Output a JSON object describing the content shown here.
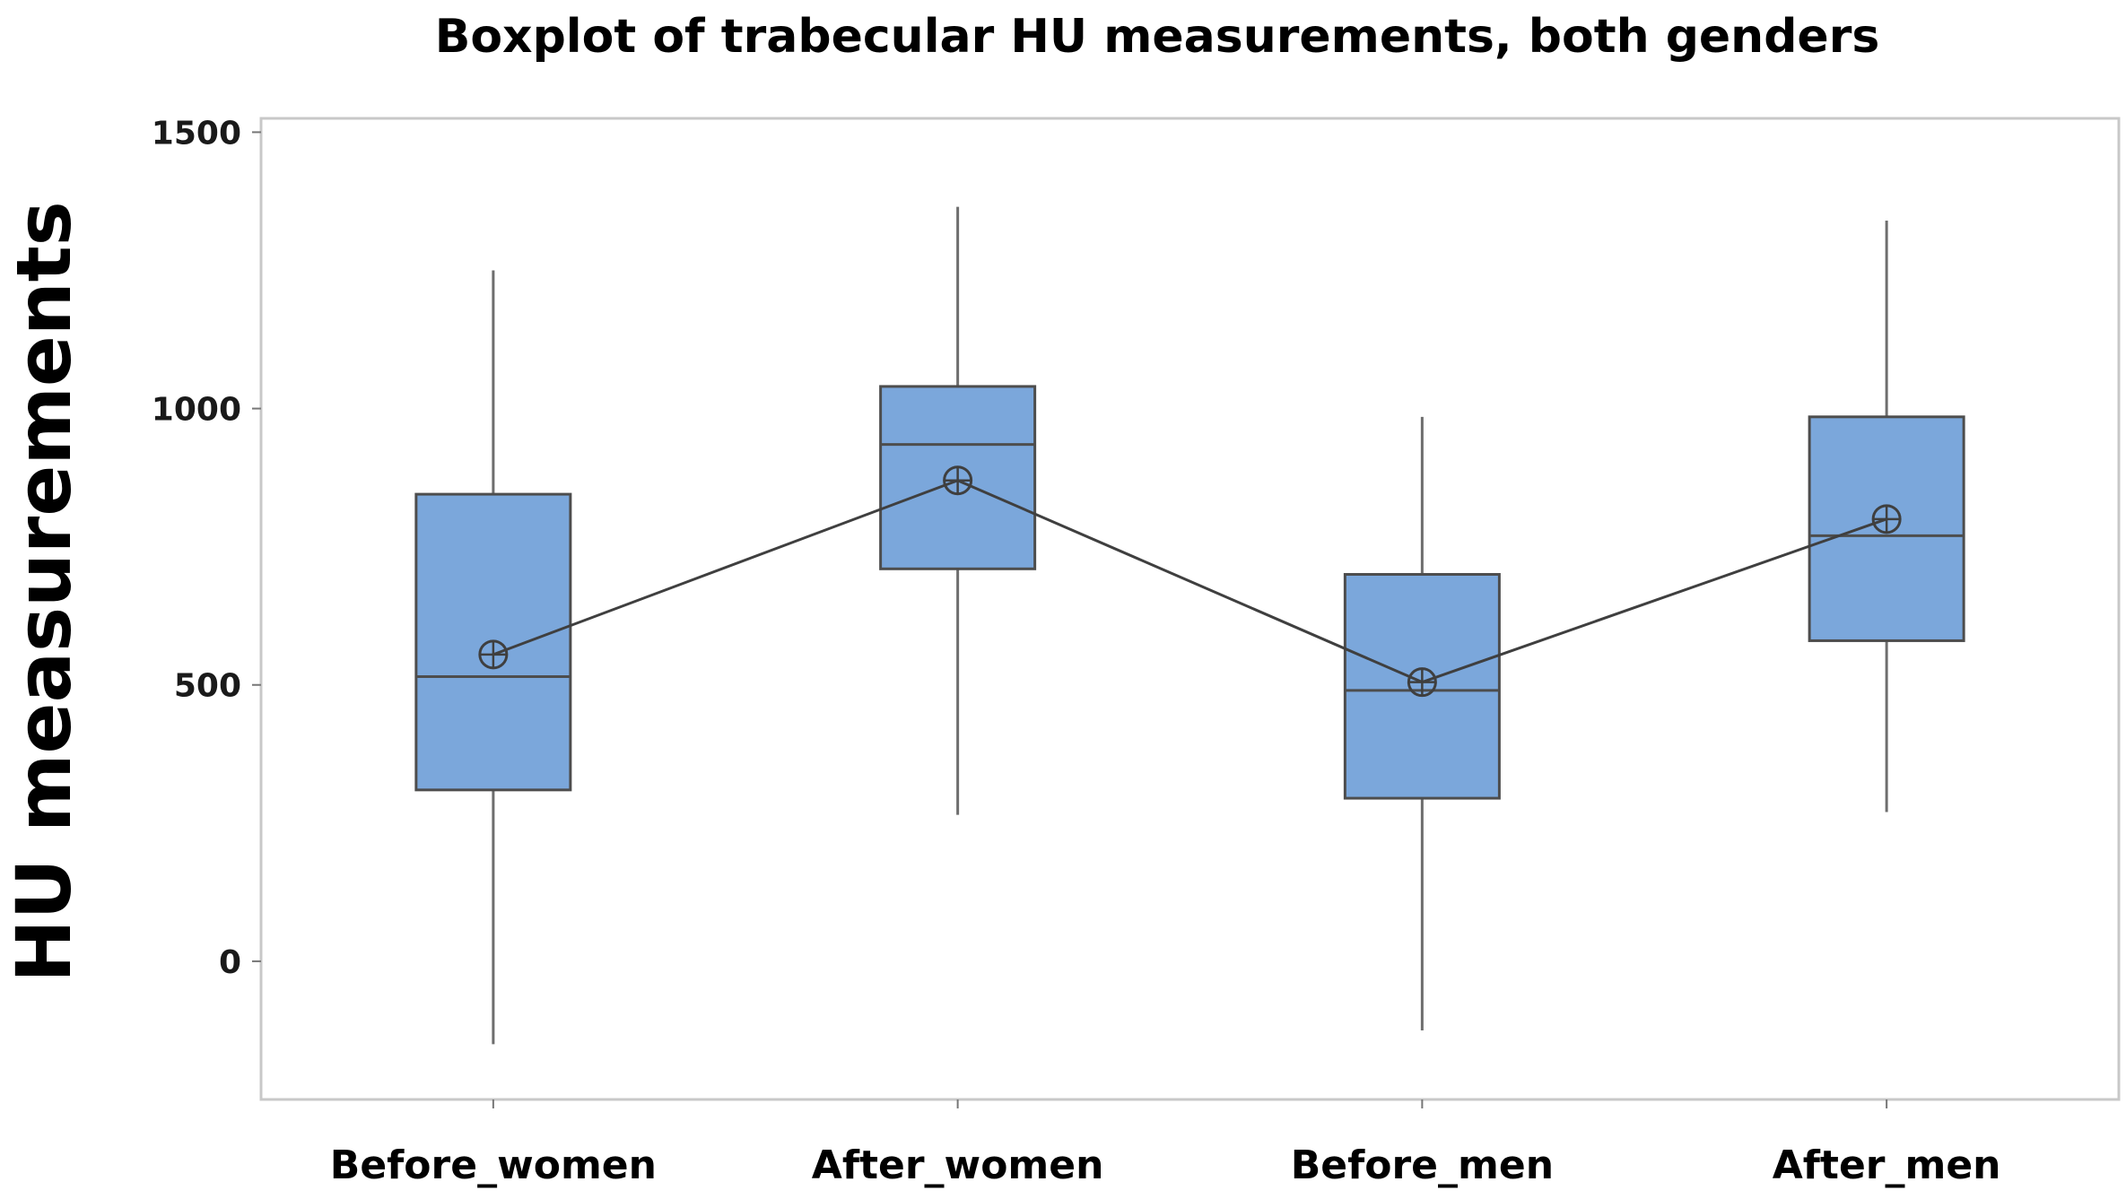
{
  "chart_data": {
    "type": "boxplot",
    "title": "Boxplot of trabecular HU measurements, both genders",
    "ylabel": "HU measurements",
    "xlabel": "",
    "ylim": [
      -250,
      1525
    ],
    "yticks": [
      0,
      500,
      1000,
      1500
    ],
    "grid": false,
    "categories": [
      "Before_women",
      "After_women",
      "Before_men",
      "After_men"
    ],
    "boxes": [
      {
        "category": "Before_women",
        "whisker_low": -150,
        "q1": 310,
        "median": 515,
        "q3": 845,
        "whisker_high": 1250,
        "mean": 555
      },
      {
        "category": "After_women",
        "whisker_low": 265,
        "q1": 710,
        "median": 935,
        "q3": 1040,
        "whisker_high": 1365,
        "mean": 870
      },
      {
        "category": "Before_men",
        "whisker_low": -125,
        "q1": 295,
        "median": 490,
        "q3": 700,
        "whisker_high": 985,
        "mean": 505
      },
      {
        "category": "After_men",
        "whisker_low": 270,
        "q1": 580,
        "median": 770,
        "q3": 985,
        "whisker_high": 1340,
        "mean": 800
      }
    ],
    "mean_connect_line": true,
    "colors": {
      "box_fill": "#7ba7db",
      "box_stroke": "#4d4d4d",
      "line": "#3f3f3f",
      "frame": "#c8c8c8"
    }
  }
}
